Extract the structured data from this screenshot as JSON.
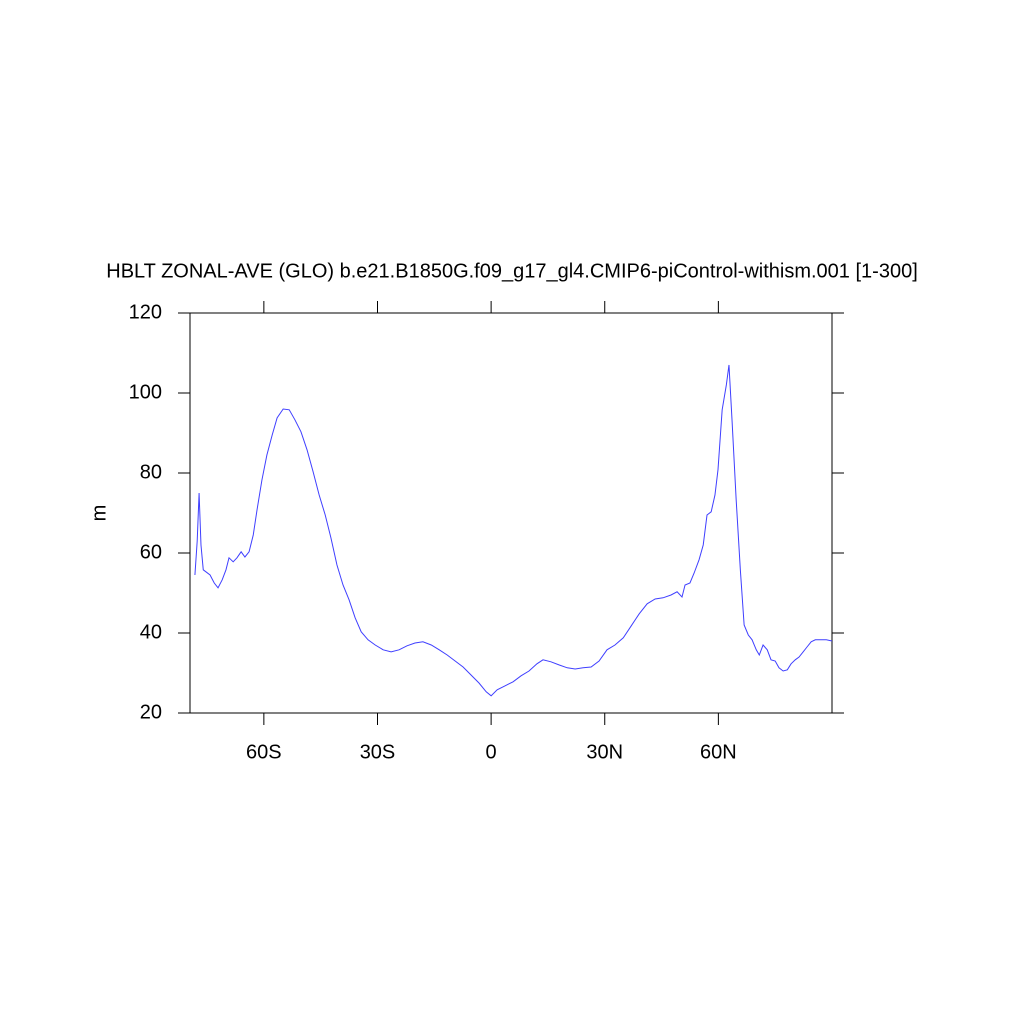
{
  "chart_data": {
    "type": "line",
    "title": "HBLT ZONAL-AVE (GLO) b.e21.B1850G.f09_g17_gl4.CMIP6-piControl-withism.001 [1-300]",
    "y_label": "m",
    "xlim": [
      -79.5,
      90
    ],
    "ylim": [
      20,
      120
    ],
    "xticks": [
      {
        "value": -60,
        "label": "60S"
      },
      {
        "value": -30,
        "label": "30S"
      },
      0,
      {
        "value": 30,
        "label": "30N"
      },
      {
        "value": 60,
        "label": "60N"
      }
    ],
    "yticks": [
      20,
      40,
      60,
      80,
      100,
      120
    ],
    "series": [
      {
        "color": "#3f3fff",
        "x": [
          -78.2,
          -77.6,
          -77.1,
          -76.6,
          -76.0,
          -75.3,
          -74.2,
          -73.1,
          -72.1,
          -71.0,
          -70.0,
          -69.2,
          -68.1,
          -67.1,
          -66.0,
          -65.0,
          -63.9,
          -62.8,
          -61.8,
          -60.5,
          -59.2,
          -57.8,
          -56.5,
          -54.9,
          -53.3,
          -51.8,
          -50.2,
          -48.6,
          -47.0,
          -45.4,
          -43.8,
          -42.3,
          -40.7,
          -39.1,
          -37.5,
          -35.9,
          -34.3,
          -32.5,
          -30.6,
          -28.5,
          -26.4,
          -24.3,
          -22.2,
          -20.1,
          -18.0,
          -15.8,
          -13.7,
          -11.6,
          -9.5,
          -7.4,
          -5.3,
          -3.2,
          -1.3,
          0,
          1.6,
          3.7,
          5.8,
          7.9,
          10.0,
          12.1,
          13.7,
          15.8,
          18.0,
          20.1,
          22.2,
          24.3,
          26.4,
          28.5,
          30.6,
          32.7,
          34.9,
          37.0,
          39.1,
          41.2,
          43.3,
          45.4,
          47.5,
          49.1,
          50.4,
          51.2,
          52.5,
          53.6,
          54.9,
          56.0,
          57.0,
          58.1,
          59.1,
          59.9,
          61.0,
          62.1,
          62.8,
          63.6,
          64.7,
          65.8,
          66.8,
          67.9,
          68.9,
          70.0,
          70.8,
          71.8,
          72.9,
          73.9,
          75.0,
          76.0,
          77.1,
          78.2,
          79.2,
          80.3,
          81.3,
          82.4,
          83.4,
          84.5,
          85.6,
          86.9,
          88.5,
          90.0
        ],
        "values": [
          54.5,
          63,
          75,
          62,
          55.8,
          55.3,
          54.5,
          52.5,
          51.3,
          53.3,
          55.8,
          58.8,
          57.8,
          58.8,
          60.3,
          59,
          60.3,
          64.5,
          70.8,
          78.3,
          84.5,
          89.5,
          93.8,
          96,
          95.8,
          93.3,
          90.3,
          85.8,
          80.3,
          74.5,
          69.5,
          63.8,
          57,
          52,
          48.3,
          43.8,
          40.3,
          38.3,
          37,
          35.8,
          35.3,
          35.8,
          36.8,
          37.5,
          37.8,
          37,
          35.8,
          34.5,
          33,
          31.5,
          29.5,
          27.5,
          25.3,
          24.3,
          25.8,
          26.8,
          27.8,
          29.3,
          30.5,
          32.3,
          33.3,
          32.8,
          32,
          31.3,
          31,
          31.3,
          31.5,
          33,
          35.8,
          37,
          38.8,
          41.8,
          44.8,
          47.3,
          48.5,
          48.8,
          49.5,
          50.3,
          49,
          52,
          52.5,
          55,
          58.3,
          62,
          69.5,
          70.3,
          74.5,
          80.8,
          95.8,
          102,
          107,
          93.3,
          73.3,
          55.8,
          42,
          39.5,
          38.3,
          35.8,
          34.5,
          37,
          35.8,
          33.3,
          33,
          31.3,
          30.5,
          30.8,
          32.3,
          33.3,
          34,
          35.3,
          36.5,
          37.8,
          38.3,
          38.3,
          38.3,
          38
        ]
      }
    ]
  }
}
